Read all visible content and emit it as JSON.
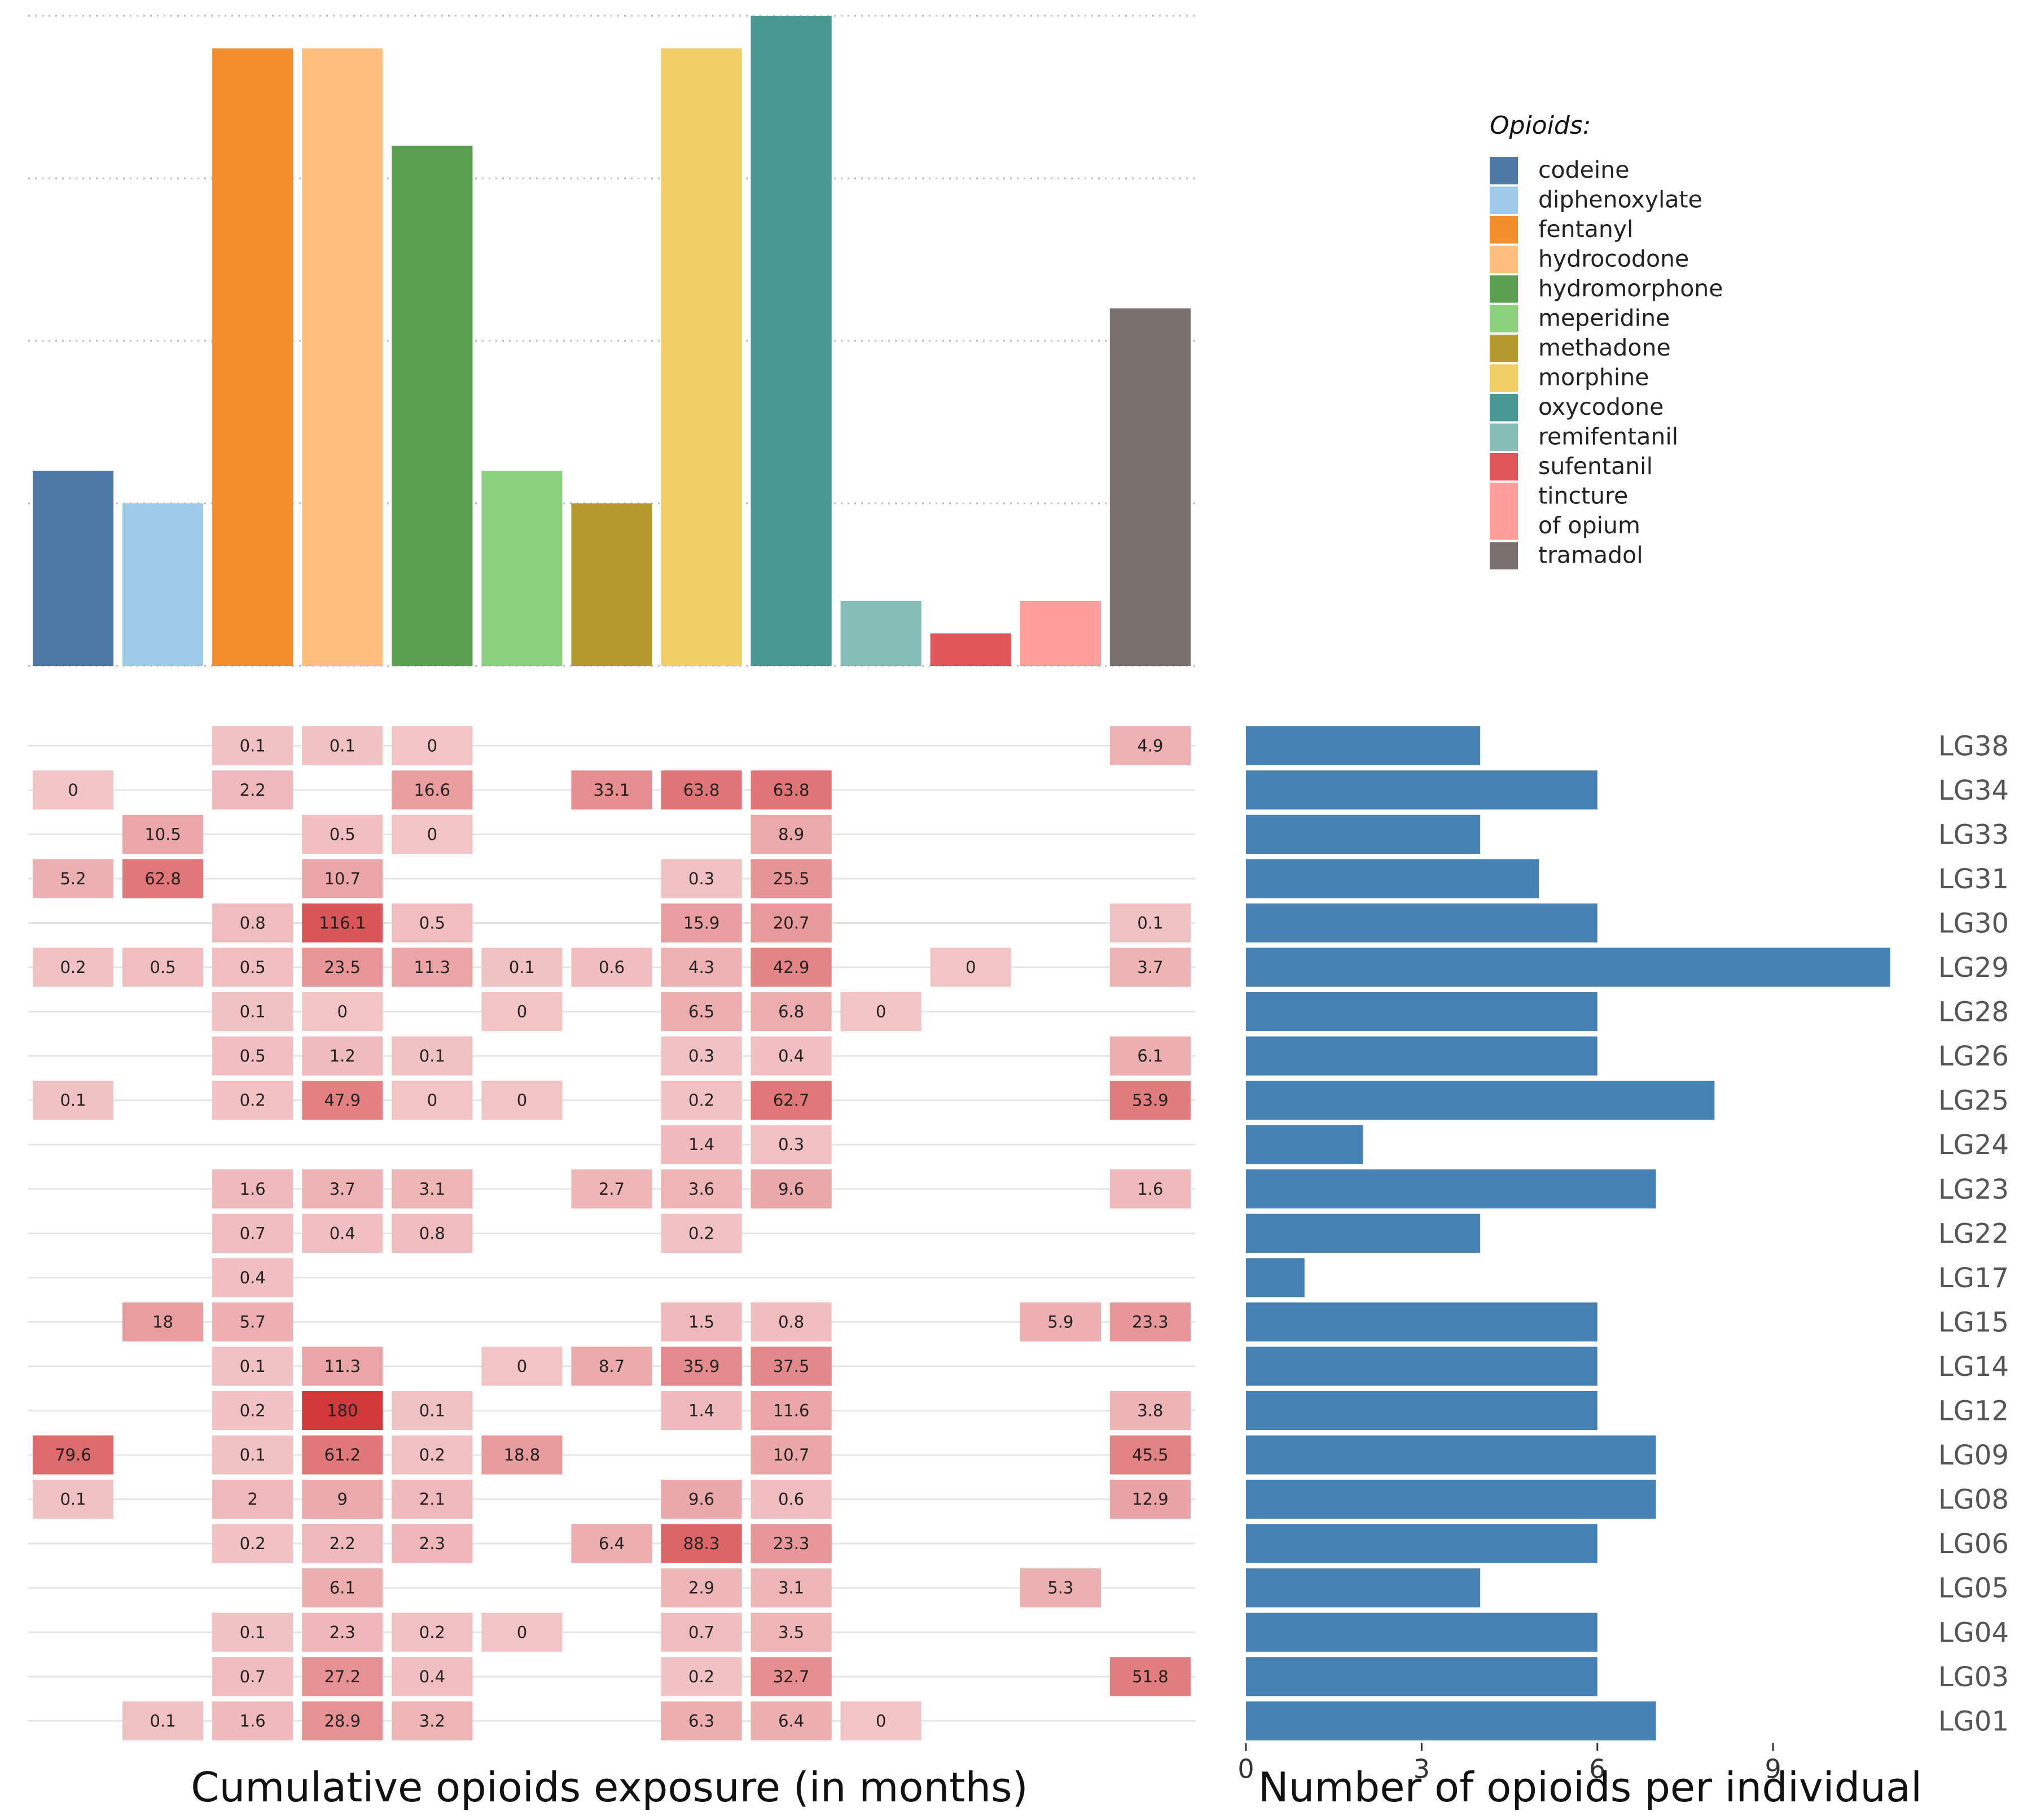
{
  "chart_data": [
    {
      "type": "bar",
      "name": "top-bar-chart",
      "categories": [
        "codeine",
        "diphenoxylate",
        "fentanyl",
        "hydrocodone",
        "hydromorphone",
        "meperidine",
        "methadone",
        "morphine",
        "oxycodone",
        "remifentanil",
        "sufentanil",
        "tincture of opium",
        "tramadol"
      ],
      "values": [
        6,
        5,
        19,
        19,
        16,
        6,
        5,
        19,
        20,
        2,
        1,
        2,
        11
      ],
      "ylim": [
        0,
        20
      ],
      "gridlines": [
        0,
        5,
        10,
        15,
        20
      ],
      "colors": [
        "#4e79a7",
        "#a0cbe8",
        "#f28e2b",
        "#ffbe7d",
        "#59a14f",
        "#8cd17d",
        "#b6992d",
        "#f1ce63",
        "#499894",
        "#86bcb6",
        "#e15759",
        "#ff9d9a",
        "#79706e"
      ],
      "xlabel": "",
      "ylabel": ""
    },
    {
      "type": "heatmap",
      "name": "exposure-heatmap",
      "xlabel": "Cumulative opioids exposure (in months)",
      "columns": [
        "codeine",
        "diphenoxylate",
        "fentanyl",
        "hydrocodone",
        "hydromorphone",
        "meperidine",
        "methadone",
        "morphine",
        "oxycodone",
        "remifentanil",
        "sufentanil",
        "tincture of opium",
        "tramadol"
      ],
      "rows": [
        "LG38",
        "LG34",
        "LG33",
        "LG31",
        "LG30",
        "LG29",
        "LG28",
        "LG26",
        "LG25",
        "LG24",
        "LG23",
        "LG22",
        "LG17",
        "LG15",
        "LG14",
        "LG12",
        "LG09",
        "LG08",
        "LG06",
        "LG05",
        "LG04",
        "LG03",
        "LG01"
      ],
      "cells": [
        [
          "",
          "",
          "0.1",
          "0.1",
          "0",
          "",
          "",
          "",
          "",
          "",
          "",
          "",
          "4.9"
        ],
        [
          "0",
          "",
          "2.2",
          "",
          "16.6",
          "",
          "33.1",
          "63.8",
          "63.8",
          "",
          "",
          "",
          ""
        ],
        [
          "",
          "10.5",
          "",
          "0.5",
          "0",
          "",
          "",
          "",
          "8.9",
          "",
          "",
          "",
          ""
        ],
        [
          "5.2",
          "62.8",
          "",
          "10.7",
          "",
          "",
          "",
          "0.3",
          "25.5",
          "",
          "",
          "",
          ""
        ],
        [
          "",
          "",
          "0.8",
          "116.1",
          "0.5",
          "",
          "",
          "15.9",
          "20.7",
          "",
          "",
          "",
          "0.1"
        ],
        [
          "0.2",
          "0.5",
          "0.5",
          "23.5",
          "11.3",
          "0.1",
          "0.6",
          "4.3",
          "42.9",
          "",
          "0",
          "",
          "3.7"
        ],
        [
          "",
          "",
          "0.1",
          "0",
          "",
          "0",
          "",
          "6.5",
          "6.8",
          "0",
          "",
          "",
          ""
        ],
        [
          "",
          "",
          "0.5",
          "1.2",
          "0.1",
          "",
          "",
          "0.3",
          "0.4",
          "",
          "",
          "",
          "6.1"
        ],
        [
          "0.1",
          "",
          "0.2",
          "47.9",
          "0",
          "0",
          "",
          "0.2",
          "62.7",
          "",
          "",
          "",
          "53.9"
        ],
        [
          "",
          "",
          "",
          "",
          "",
          "",
          "",
          "1.4",
          "0.3",
          "",
          "",
          "",
          ""
        ],
        [
          "",
          "",
          "1.6",
          "3.7",
          "3.1",
          "",
          "2.7",
          "3.6",
          "9.6",
          "",
          "",
          "",
          "1.6"
        ],
        [
          "",
          "",
          "0.7",
          "0.4",
          "0.8",
          "",
          "",
          "0.2",
          "",
          "",
          "",
          "",
          ""
        ],
        [
          "",
          "",
          "0.4",
          "",
          "",
          "",
          "",
          "",
          "",
          "",
          "",
          "",
          ""
        ],
        [
          "",
          "18",
          "5.7",
          "",
          "",
          "",
          "",
          "1.5",
          "0.8",
          "",
          "",
          "5.9",
          "23.3"
        ],
        [
          "",
          "",
          "0.1",
          "11.3",
          "",
          "0",
          "8.7",
          "35.9",
          "37.5",
          "",
          "",
          "",
          ""
        ],
        [
          "",
          "",
          "0.2",
          "180",
          "0.1",
          "",
          "",
          "1.4",
          "11.6",
          "",
          "",
          "",
          "3.8"
        ],
        [
          "79.6",
          "",
          "0.1",
          "61.2",
          "0.2",
          "18.8",
          "",
          "",
          "10.7",
          "",
          "",
          "",
          "45.5"
        ],
        [
          "0.1",
          "",
          "2",
          "9",
          "2.1",
          "",
          "",
          "9.6",
          "0.6",
          "",
          "",
          "",
          "12.9"
        ],
        [
          "",
          "",
          "0.2",
          "2.2",
          "2.3",
          "",
          "6.4",
          "88.3",
          "23.3",
          "",
          "",
          "",
          ""
        ],
        [
          "",
          "",
          "",
          "6.1",
          "",
          "",
          "",
          "2.9",
          "3.1",
          "",
          "",
          "5.3",
          ""
        ],
        [
          "",
          "",
          "0.1",
          "2.3",
          "0.2",
          "0",
          "",
          "0.7",
          "3.5",
          "",
          "",
          "",
          ""
        ],
        [
          "",
          "",
          "0.7",
          "27.2",
          "0.4",
          "",
          "",
          "0.2",
          "32.7",
          "",
          "",
          "",
          "51.8"
        ],
        [
          "",
          "0.1",
          "1.6",
          "28.9",
          "3.2",
          "",
          "",
          "6.3",
          "6.4",
          "0",
          "",
          "",
          ""
        ]
      ],
      "max_value": 180,
      "color_low": "#f2c4c6",
      "color_high": "#d1383a"
    },
    {
      "type": "bar",
      "orientation": "horizontal",
      "name": "opioid-count-chart",
      "xlabel": "Number of opioids per individual",
      "categories": [
        "LG38",
        "LG34",
        "LG33",
        "LG31",
        "LG30",
        "LG29",
        "LG28",
        "LG26",
        "LG25",
        "LG24",
        "LG23",
        "LG22",
        "LG17",
        "LG15",
        "LG14",
        "LG12",
        "LG09",
        "LG08",
        "LG06",
        "LG05",
        "LG04",
        "LG03",
        "LG01"
      ],
      "values": [
        4,
        6,
        4,
        5,
        6,
        11,
        6,
        6,
        8,
        2,
        7,
        4,
        1,
        6,
        6,
        6,
        7,
        7,
        6,
        4,
        6,
        6,
        7
      ],
      "xlim": [
        0,
        11
      ],
      "xticks": [
        0,
        3,
        6,
        9
      ],
      "bar_color": "#4682b4"
    }
  ],
  "legend": {
    "title": "Opioids:",
    "items": [
      {
        "label": "codeine",
        "color": "#4e79a7"
      },
      {
        "label": "diphenoxylate",
        "color": "#a0cbe8"
      },
      {
        "label": "fentanyl",
        "color": "#f28e2b"
      },
      {
        "label": "hydrocodone",
        "color": "#ffbe7d"
      },
      {
        "label": "hydromorphone",
        "color": "#59a14f"
      },
      {
        "label": "meperidine",
        "color": "#8cd17d"
      },
      {
        "label": "methadone",
        "color": "#b6992d"
      },
      {
        "label": "morphine",
        "color": "#f1ce63"
      },
      {
        "label": "oxycodone",
        "color": "#499894"
      },
      {
        "label": "remifentanil",
        "color": "#86bcb6"
      },
      {
        "label": "sufentanil",
        "color": "#e15759"
      },
      {
        "label": "tincture of opium",
        "lines": [
          "tincture",
          "of opium"
        ],
        "color": "#ff9d9a"
      },
      {
        "label": "tramadol",
        "color": "#79706e"
      }
    ]
  }
}
